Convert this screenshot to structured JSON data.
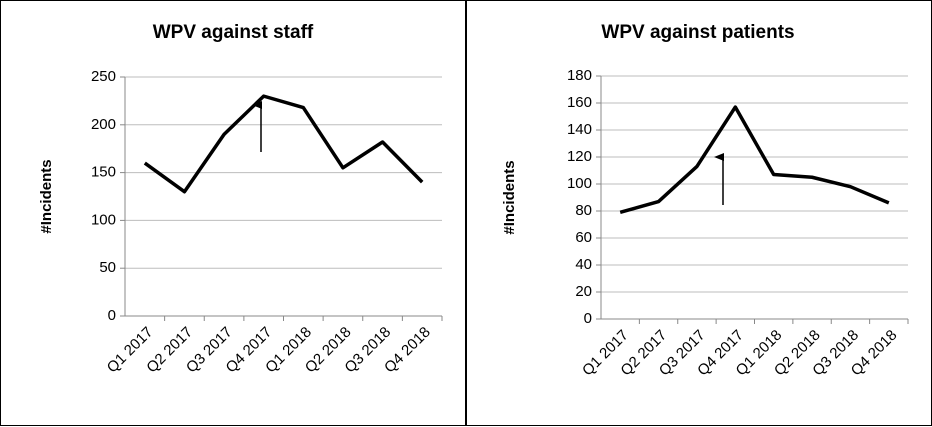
{
  "chart_data": [
    {
      "type": "line",
      "title": "WPV against staff",
      "y_label": "#Incidents",
      "categories": [
        "Q1 2017",
        "Q2 2017",
        "Q3 2017",
        "Q4 2017",
        "Q1 2018",
        "Q2 2018",
        "Q3 2018",
        "Q4 2018"
      ],
      "series": [
        {
          "name": "WPV against staff",
          "color": "#000000",
          "values": [
            160,
            130,
            190,
            230,
            218,
            155,
            182,
            140
          ]
        }
      ],
      "ylim": [
        0,
        250
      ],
      "yticks": [
        0,
        50,
        100,
        150,
        200,
        250
      ],
      "grid": true
    },
    {
      "type": "line",
      "title": "WPV against patients",
      "y_label": "#Incidents",
      "categories": [
        "Q1 2017",
        "Q2 2017",
        "Q3 2017",
        "Q4 2017",
        "Q1 2018",
        "Q2 2018",
        "Q3 2018",
        "Q4 2018"
      ],
      "series": [
        {
          "name": "WPV against patients",
          "color": "#000000",
          "values": [
            79,
            87,
            113,
            157,
            107,
            105,
            98,
            86
          ]
        }
      ],
      "ylim": [
        0,
        180
      ],
      "yticks": [
        0,
        20,
        40,
        60,
        80,
        100,
        120,
        140,
        160,
        180
      ],
      "grid": true
    }
  ]
}
